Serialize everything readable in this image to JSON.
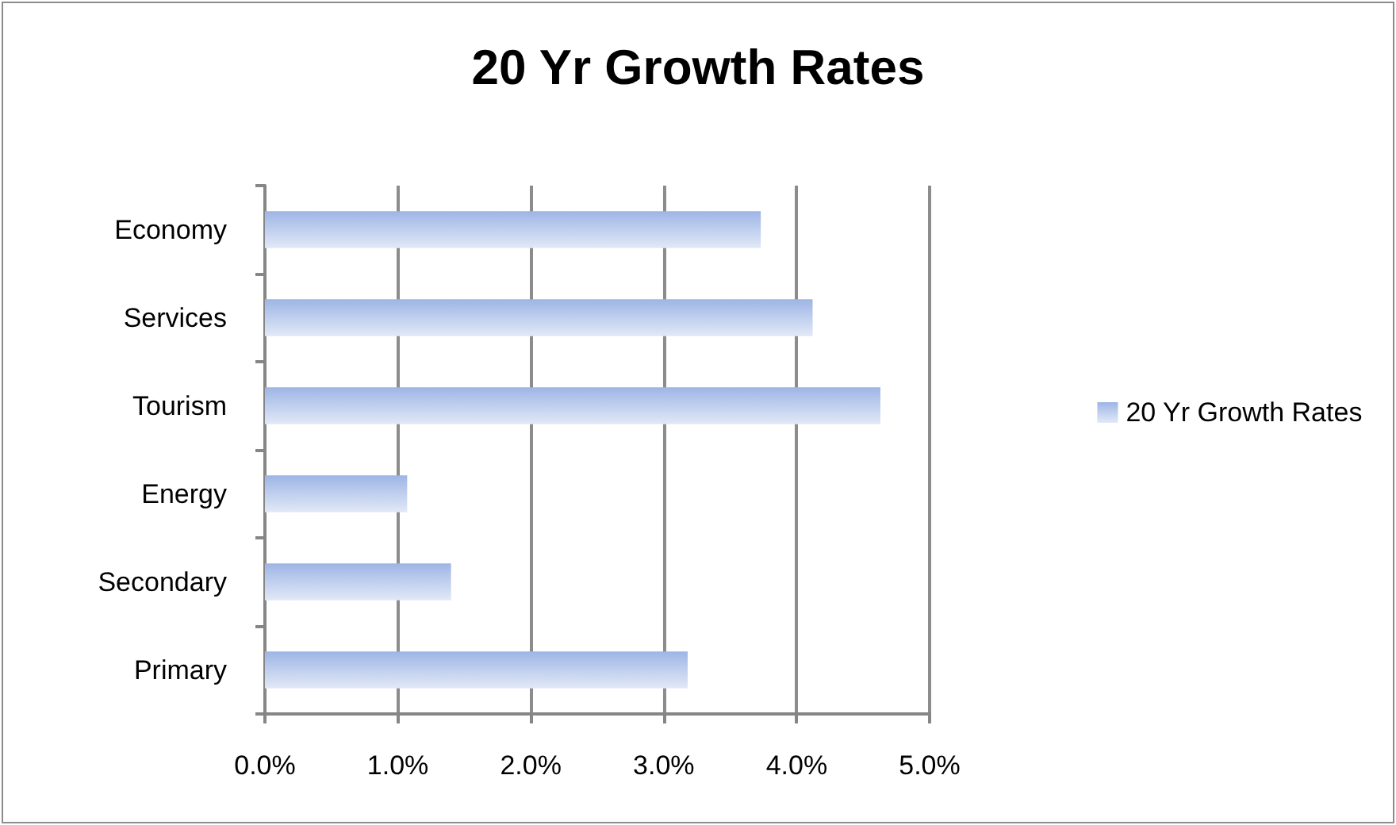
{
  "chart_data": {
    "type": "bar",
    "orientation": "horizontal",
    "title": "20 Yr Growth Rates",
    "categories": [
      "Economy",
      "Services",
      "Tourism",
      "Energy",
      "Secondary",
      "Primary"
    ],
    "series": [
      {
        "name": "20 Yr Growth Rates",
        "color": "#9db5e5",
        "values": [
          3.73,
          4.12,
          4.63,
          1.07,
          1.4,
          3.18
        ]
      }
    ],
    "xlim": [
      0,
      5
    ],
    "xticks": [
      {
        "value": 0,
        "label": "0.0%"
      },
      {
        "value": 1,
        "label": "1.0%"
      },
      {
        "value": 2,
        "label": "2.0%"
      },
      {
        "value": 3,
        "label": "3.0%"
      },
      {
        "value": 4,
        "label": "4.0%"
      },
      {
        "value": 5,
        "label": "5.0%"
      }
    ],
    "grid": "x",
    "legend": "right"
  }
}
